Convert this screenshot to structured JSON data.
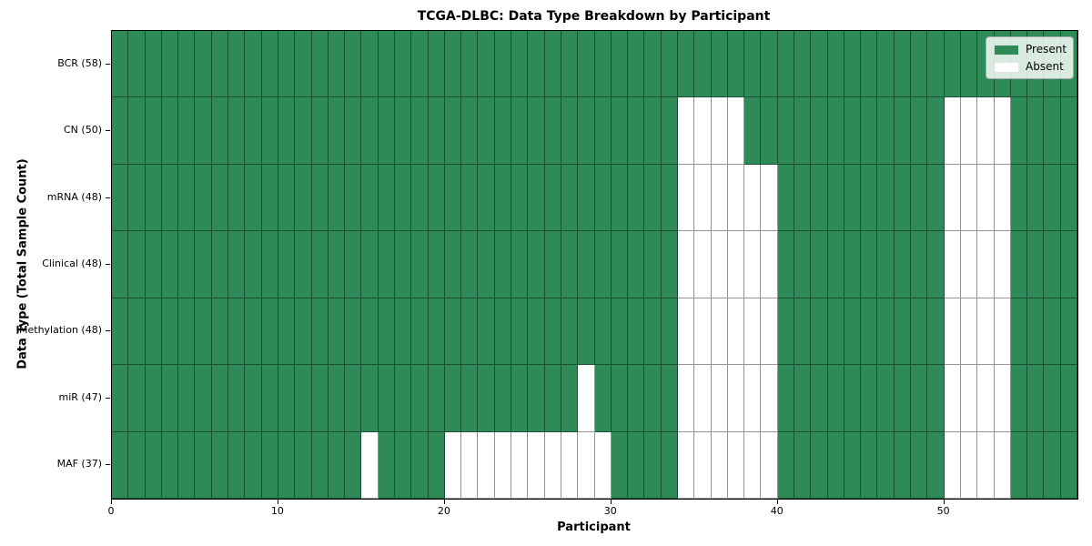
{
  "colors": {
    "present": "#2e8b57",
    "absent": "#ffffff",
    "cell_edge": "rgba(0,0,0,0.42)"
  },
  "legend": {
    "present_label": "Present",
    "absent_label": "Absent"
  },
  "chart_data": {
    "type": "heatmap",
    "title": "TCGA-DLBC: Data Type Breakdown by Participant",
    "xlabel": "Participant",
    "ylabel": "Data Type (Total Sample Count)",
    "n_participants": 58,
    "x_ticks": [
      0,
      10,
      20,
      30,
      40,
      50
    ],
    "xlim": [
      0,
      58
    ],
    "grid": true,
    "legend_position": "upper right",
    "legend_entries": [
      {
        "label": "Present",
        "color": "#2e8b57"
      },
      {
        "label": "Absent",
        "color": "#ffffff"
      }
    ],
    "value_encoding": {
      "present": 1,
      "absent": 0
    },
    "rows": [
      {
        "label": "BCR (58)",
        "data_type": "BCR",
        "total_samples": 58,
        "absent_participants": []
      },
      {
        "label": "CN (50)",
        "data_type": "CN",
        "total_samples": 50,
        "absent_participants": [
          34,
          35,
          36,
          37,
          50,
          51,
          52,
          53
        ]
      },
      {
        "label": "mRNA (48)",
        "data_type": "mRNA",
        "total_samples": 48,
        "absent_participants": [
          34,
          35,
          36,
          37,
          38,
          39,
          50,
          51,
          52,
          53
        ]
      },
      {
        "label": "Clinical (48)",
        "data_type": "Clinical",
        "total_samples": 48,
        "absent_participants": [
          34,
          35,
          36,
          37,
          38,
          39,
          50,
          51,
          52,
          53
        ]
      },
      {
        "label": "Methylation (48)",
        "data_type": "Methylation",
        "total_samples": 48,
        "absent_participants": [
          34,
          35,
          36,
          37,
          38,
          39,
          50,
          51,
          52,
          53
        ]
      },
      {
        "label": "miR (47)",
        "data_type": "miR",
        "total_samples": 47,
        "absent_participants": [
          28,
          34,
          35,
          36,
          37,
          38,
          39,
          50,
          51,
          52,
          53
        ]
      },
      {
        "label": "MAF (37)",
        "data_type": "MAF",
        "total_samples": 37,
        "absent_participants": [
          15,
          20,
          21,
          22,
          23,
          24,
          25,
          26,
          27,
          28,
          29,
          34,
          35,
          36,
          37,
          38,
          39,
          50,
          51,
          52,
          53
        ]
      }
    ]
  }
}
